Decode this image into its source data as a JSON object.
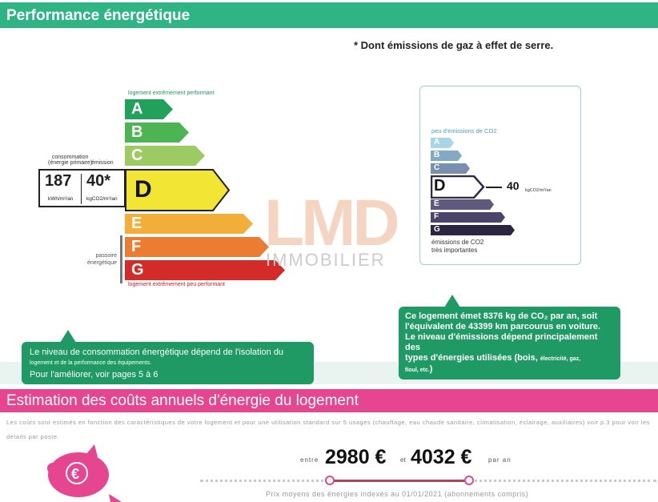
{
  "header": {
    "title": "Performance énergétique"
  },
  "footnote": "* Dont émissions de gaz à effet de serre.",
  "dpe": {
    "top_label": "logement extrêmement performant",
    "bottom_label": "logement extrêmement peu performant",
    "classes": [
      "A",
      "B",
      "C",
      "D",
      "E",
      "F",
      "G"
    ],
    "colors": [
      "#23a15a",
      "#4db454",
      "#9ccb63",
      "#f2e533",
      "#f2ae39",
      "#ec7c31",
      "#d22b2a"
    ],
    "current_class": "D",
    "consumption_label": "consommation",
    "consumption_sublabel": "(énergie primaire)",
    "emission_label": "émission",
    "consumption_value": "187",
    "emission_value": "40*",
    "consumption_unit": "kWh/m²/an",
    "emission_unit": "kgCO2/m²/an",
    "passoire_label_1": "passoire",
    "passoire_label_2": "énergétique"
  },
  "co2": {
    "top_label": "peu d'émissions de CO2",
    "classes": [
      "A",
      "B",
      "C",
      "D",
      "E",
      "F",
      "G"
    ],
    "colors": [
      "#a9d6e6",
      "#84a9c5",
      "#7a8eae",
      "#2f2848",
      "#5f5a7d",
      "#4c4569",
      "#2b2540"
    ],
    "current_class": "D",
    "value": "40",
    "unit": "kgCO2/m²/an",
    "bottom_label_1": "émissions de CO2",
    "bottom_label_2": "très importantes"
  },
  "watermark": {
    "logo": "LMD",
    "name": "IMMOBILIER"
  },
  "bubble_left": {
    "line1": "Le niveau de consommation énergétique dépend de l'isolation du",
    "line2": "logement et de la performance des équipements.",
    "line3": "Pour l'améliorer, voir pages 5 à 6"
  },
  "bubble_right": {
    "line1": "Ce logement émet 8376  kg de CO₂ par an, soit",
    "line2": "l'équivalent de 43399 km parcourus en voiture.",
    "line3": "Le niveau d'émissions dépend principalement des",
    "line4": "types d'énergies utilisées (bois, ",
    "line4_small": "électricité, gaz,",
    "line5_small": "fioul, etc.",
    "line5_end": ")"
  },
  "costs": {
    "title": "Estimation des coûts annuels d'énergie du logement",
    "note": "Les coûts sont estimés en fonction des caractéristiques de votre logement et pour une utilisation standard sur 5 usages (chauffage, eau chaude sanitaire, climatisation, éclairage, auxiliaires) voir p.3 pour voir les détails par poste.",
    "entre": "entre",
    "min": "2980 €",
    "et": "et",
    "max": "4032 €",
    "par_an": "par an",
    "price_note": "Prix moyens des énergies indexés au 01/01/2021 (abonnements compris)",
    "icon": "piggy-bank-euro-icon"
  }
}
